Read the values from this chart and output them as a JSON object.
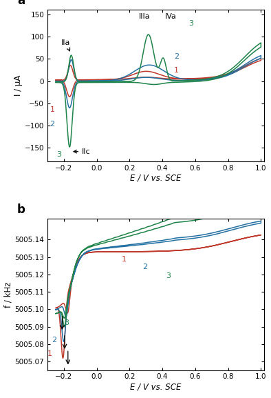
{
  "panel_a": {
    "xlabel": "E / V vs. SCE",
    "ylabel": "I / μA",
    "xlim": [
      -0.3,
      1.02
    ],
    "ylim": [
      -180,
      160
    ],
    "yticks": [
      -150,
      -100,
      -50,
      0,
      50,
      100,
      150
    ],
    "xticks": [
      -0.2,
      0.0,
      0.2,
      0.4,
      0.6,
      0.8,
      1.0
    ],
    "curve1_color": "#c0392b",
    "curve2_color": "#2471a3",
    "curve3_color": "#1e8449"
  },
  "panel_b": {
    "xlabel": "E / V vs. SCE",
    "ylabel": "f / kHz",
    "xlim": [
      -0.3,
      1.02
    ],
    "ylim": [
      5005.065,
      5005.152
    ],
    "yticks": [
      5005.07,
      5005.08,
      5005.09,
      5005.1,
      5005.11,
      5005.12,
      5005.13,
      5005.14
    ],
    "xticks": [
      -0.2,
      0.0,
      0.2,
      0.4,
      0.6,
      0.8,
      1.0
    ],
    "curve1_color": "#c0392b",
    "curve2_color": "#2471a3",
    "curve3_color": "#1e8449"
  }
}
